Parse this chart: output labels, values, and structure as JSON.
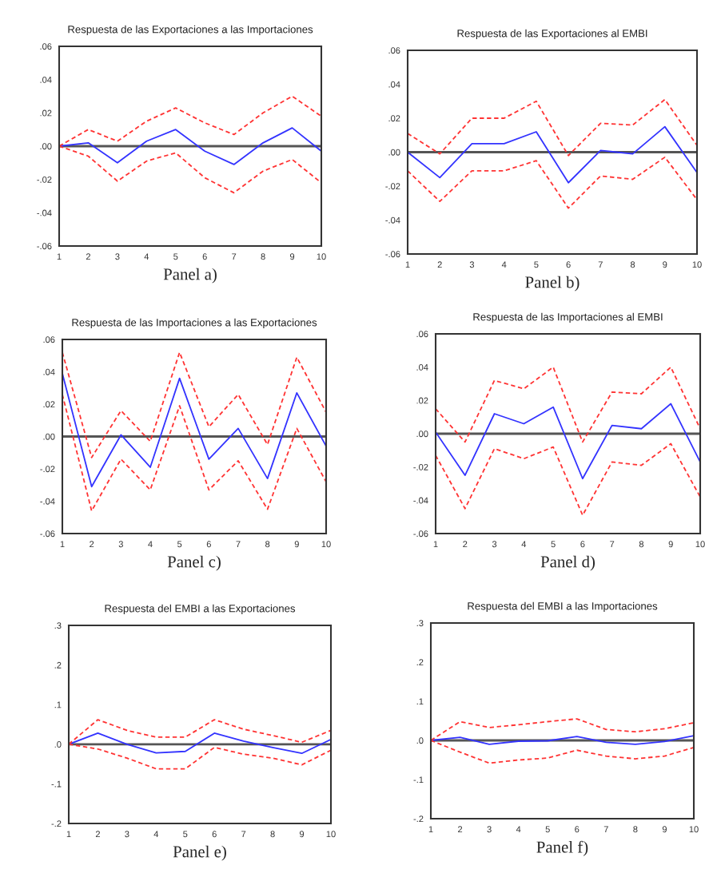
{
  "chart_data": [
    {
      "type": "line",
      "title": "Respuesta de las Exportaciones a las Importaciones",
      "xlabel": "Panel a)",
      "x": [
        1,
        2,
        3,
        4,
        5,
        6,
        7,
        8,
        9,
        10
      ],
      "xlim": [
        1,
        10
      ],
      "xticks": [
        1,
        2,
        3,
        4,
        5,
        6,
        7,
        8,
        9,
        10
      ],
      "ylim": [
        -0.06,
        0.06
      ],
      "yticks": [
        {
          "value": 0.06,
          "label": ".06"
        },
        {
          "value": 0.04,
          "label": ".04"
        },
        {
          "value": 0.02,
          "label": ".02"
        },
        {
          "value": 0,
          "label": ".00"
        },
        {
          "value": -0.02,
          "label": "-.02"
        },
        {
          "value": -0.04,
          "label": "-.04"
        },
        {
          "value": -0.06,
          "label": "-.06"
        }
      ],
      "grid": false,
      "legend": false,
      "ref_lines": [
        {
          "axis": "y",
          "value": 0,
          "color": "#555555",
          "line_style": "solid"
        }
      ],
      "series": [
        {
          "color": "#3333ff",
          "line_style": "solid",
          "values": [
            0,
            0.002,
            -0.01,
            0.003,
            0.01,
            -0.003,
            -0.011,
            0.002,
            0.011,
            -0.003
          ]
        },
        {
          "color": "#ff3333",
          "line_style": "dashed",
          "values": [
            0,
            0.01,
            0.003,
            0.015,
            0.023,
            0.014,
            0.007,
            0.02,
            0.03,
            0.018
          ]
        },
        {
          "color": "#ff3333",
          "line_style": "dashed",
          "values": [
            0,
            -0.006,
            -0.021,
            -0.009,
            -0.004,
            -0.019,
            -0.028,
            -0.015,
            -0.008,
            -0.022
          ]
        }
      ]
    },
    {
      "type": "line",
      "title": "Respuesta de las Exportaciones al EMBI",
      "xlabel": "Panel b)",
      "x": [
        1,
        2,
        3,
        4,
        5,
        6,
        7,
        8,
        9,
        10
      ],
      "xlim": [
        1,
        10
      ],
      "xticks": [
        1,
        2,
        3,
        4,
        5,
        6,
        7,
        8,
        9,
        10
      ],
      "ylim": [
        -0.06,
        0.06
      ],
      "yticks": [
        {
          "value": 0.06,
          "label": ".06"
        },
        {
          "value": 0.04,
          "label": ".04"
        },
        {
          "value": 0.02,
          "label": ".02"
        },
        {
          "value": 0,
          "label": ".00"
        },
        {
          "value": -0.02,
          "label": "-.02"
        },
        {
          "value": -0.04,
          "label": "-.04"
        },
        {
          "value": -0.06,
          "label": "-.06"
        }
      ],
      "grid": false,
      "legend": false,
      "ref_lines": [
        {
          "axis": "y",
          "value": 0,
          "color": "#555555",
          "line_style": "solid"
        }
      ],
      "series": [
        {
          "color": "#3333ff",
          "line_style": "solid",
          "values": [
            0,
            -0.015,
            0.005,
            0.005,
            0.012,
            -0.018,
            0.001,
            -0.001,
            0.015,
            -0.012
          ]
        },
        {
          "color": "#ff3333",
          "line_style": "dashed",
          "values": [
            0.011,
            -0.001,
            0.02,
            0.02,
            0.03,
            -0.002,
            0.017,
            0.016,
            0.031,
            0.004
          ]
        },
        {
          "color": "#ff3333",
          "line_style": "dashed",
          "values": [
            -0.011,
            -0.029,
            -0.011,
            -0.011,
            -0.005,
            -0.033,
            -0.014,
            -0.016,
            -0.003,
            -0.028
          ]
        }
      ]
    },
    {
      "type": "line",
      "title": "Respuesta de las Importaciones a las Exportaciones",
      "xlabel": "Panel c)",
      "x": [
        1,
        2,
        3,
        4,
        5,
        6,
        7,
        8,
        9,
        10
      ],
      "xlim": [
        1,
        10
      ],
      "xticks": [
        1,
        2,
        3,
        4,
        5,
        6,
        7,
        8,
        9,
        10
      ],
      "ylim": [
        -0.06,
        0.06
      ],
      "yticks": [
        {
          "value": 0.06,
          "label": ".06"
        },
        {
          "value": 0.04,
          "label": ".04"
        },
        {
          "value": 0.02,
          "label": ".02"
        },
        {
          "value": 0,
          "label": ".00"
        },
        {
          "value": -0.02,
          "label": "-.02"
        },
        {
          "value": -0.04,
          "label": "-.04"
        },
        {
          "value": -0.06,
          "label": "-.06"
        }
      ],
      "grid": false,
      "legend": false,
      "ref_lines": [
        {
          "axis": "y",
          "value": 0,
          "color": "#555555",
          "line_style": "solid"
        }
      ],
      "series": [
        {
          "color": "#3333ff",
          "line_style": "solid",
          "values": [
            0.039,
            -0.031,
            0.001,
            -0.019,
            0.036,
            -0.014,
            0.005,
            -0.026,
            0.027,
            -0.006
          ]
        },
        {
          "color": "#ff3333",
          "line_style": "dashed",
          "values": [
            0.052,
            -0.013,
            0.016,
            -0.003,
            0.052,
            0.006,
            0.026,
            -0.005,
            0.049,
            0.015
          ]
        },
        {
          "color": "#ff3333",
          "line_style": "dashed",
          "values": [
            0.026,
            -0.046,
            -0.014,
            -0.033,
            0.019,
            -0.033,
            -0.015,
            -0.045,
            0.005,
            -0.028
          ]
        }
      ]
    },
    {
      "type": "line",
      "title": "Respuesta de las Importaciones al EMBI",
      "xlabel": "Panel d)",
      "x": [
        1,
        2,
        3,
        4,
        5,
        6,
        7,
        8,
        9,
        10
      ],
      "xlim": [
        1,
        10
      ],
      "xticks": [
        1,
        2,
        3,
        4,
        5,
        6,
        7,
        8,
        9,
        10
      ],
      "ylim": [
        -0.06,
        0.06
      ],
      "yticks": [
        {
          "value": 0.06,
          "label": ".06"
        },
        {
          "value": 0.04,
          "label": ".04"
        },
        {
          "value": 0.02,
          "label": ".02"
        },
        {
          "value": 0,
          "label": ".00"
        },
        {
          "value": -0.02,
          "label": "-.02"
        },
        {
          "value": -0.04,
          "label": "-.04"
        },
        {
          "value": -0.06,
          "label": "-.06"
        }
      ],
      "grid": false,
      "legend": false,
      "ref_lines": [
        {
          "axis": "y",
          "value": 0,
          "color": "#555555",
          "line_style": "solid"
        }
      ],
      "series": [
        {
          "color": "#3333ff",
          "line_style": "solid",
          "values": [
            0.001,
            -0.025,
            0.012,
            0.006,
            0.016,
            -0.027,
            0.005,
            0.003,
            0.018,
            -0.017
          ]
        },
        {
          "color": "#ff3333",
          "line_style": "dashed",
          "values": [
            0.015,
            -0.005,
            0.032,
            0.027,
            0.04,
            -0.005,
            0.025,
            0.024,
            0.04,
            0.003
          ]
        },
        {
          "color": "#ff3333",
          "line_style": "dashed",
          "values": [
            -0.013,
            -0.045,
            -0.009,
            -0.015,
            -0.008,
            -0.049,
            -0.017,
            -0.019,
            -0.006,
            -0.038
          ]
        }
      ]
    },
    {
      "type": "line",
      "title": "Respuesta del EMBI a las Exportaciones",
      "xlabel": "Panel e)",
      "x": [
        1,
        2,
        3,
        4,
        5,
        6,
        7,
        8,
        9,
        10
      ],
      "xlim": [
        1,
        10
      ],
      "xticks": [
        1,
        2,
        3,
        4,
        5,
        6,
        7,
        8,
        9,
        10
      ],
      "ylim": [
        -0.2,
        0.3
      ],
      "yticks": [
        {
          "value": 0.3,
          "label": ".3"
        },
        {
          "value": 0.2,
          "label": ".2"
        },
        {
          "value": 0.1,
          "label": ".1"
        },
        {
          "value": 0,
          "label": ".0"
        },
        {
          "value": -0.1,
          "label": "-.1"
        },
        {
          "value": -0.2,
          "label": "-.2"
        }
      ],
      "grid": false,
      "legend": false,
      "ref_lines": [
        {
          "axis": "y",
          "value": 0,
          "color": "#555555",
          "line_style": "solid"
        }
      ],
      "series": [
        {
          "color": "#3333ff",
          "line_style": "solid",
          "values": [
            0,
            0.028,
            0,
            -0.022,
            -0.018,
            0.028,
            0.008,
            -0.008,
            -0.023,
            0.012
          ]
        },
        {
          "color": "#ff3333",
          "line_style": "dashed",
          "values": [
            0,
            0.062,
            0.035,
            0.018,
            0.018,
            0.062,
            0.038,
            0.022,
            0.005,
            0.035
          ]
        },
        {
          "color": "#ff3333",
          "line_style": "dashed",
          "values": [
            0,
            -0.012,
            -0.035,
            -0.062,
            -0.062,
            -0.008,
            -0.025,
            -0.035,
            -0.052,
            -0.015
          ]
        }
      ]
    },
    {
      "type": "line",
      "title": "Respuesta del EMBI a las Importaciones",
      "xlabel": "Panel f)",
      "x": [
        1,
        2,
        3,
        4,
        5,
        6,
        7,
        8,
        9,
        10
      ],
      "xlim": [
        1,
        10
      ],
      "xticks": [
        1,
        2,
        3,
        4,
        5,
        6,
        7,
        8,
        9,
        10
      ],
      "ylim": [
        -0.2,
        0.3
      ],
      "yticks": [
        {
          "value": 0.3,
          "label": ".3"
        },
        {
          "value": 0.2,
          "label": ".2"
        },
        {
          "value": 0.1,
          "label": ".1"
        },
        {
          "value": 0,
          "label": ".0"
        },
        {
          "value": -0.1,
          "label": "-.1"
        },
        {
          "value": -0.2,
          "label": "-.2"
        }
      ],
      "grid": false,
      "legend": false,
      "ref_lines": [
        {
          "axis": "y",
          "value": 0,
          "color": "#555555",
          "line_style": "solid"
        }
      ],
      "series": [
        {
          "color": "#3333ff",
          "line_style": "solid",
          "values": [
            0,
            0.008,
            -0.01,
            -0.002,
            -0.001,
            0.01,
            -0.005,
            -0.01,
            -0.003,
            0.012
          ]
        },
        {
          "color": "#ff3333",
          "line_style": "dashed",
          "values": [
            0,
            0.048,
            0.033,
            0.04,
            0.048,
            0.055,
            0.028,
            0.022,
            0.03,
            0.045
          ]
        },
        {
          "color": "#ff3333",
          "line_style": "dashed",
          "values": [
            0,
            -0.03,
            -0.058,
            -0.05,
            -0.045,
            -0.025,
            -0.04,
            -0.047,
            -0.04,
            -0.018
          ]
        }
      ]
    }
  ]
}
